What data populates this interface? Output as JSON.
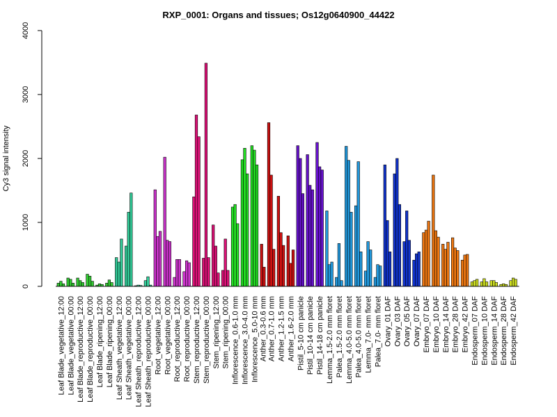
{
  "chart_data": {
    "type": "bar",
    "title": "RXP_0001: Organs and tissues; Os12g0640900_44422",
    "ylabel": "Cy3 signal intensity",
    "xlabel": "",
    "ylim": [
      0,
      4000
    ],
    "yticks": [
      0,
      1000,
      2000,
      3000,
      4000
    ],
    "grid": false,
    "legend": "none",
    "groups": [
      {
        "name": "Leaf Blade_vegetative_12:00",
        "color": "#33cc33",
        "values": [
          50,
          80,
          40
        ]
      },
      {
        "name": "Leaf Blade_vegetative_00:00",
        "color": "#33cc33",
        "values": [
          130,
          110,
          50
        ]
      },
      {
        "name": "Leaf Blade_reproductive_12:00",
        "color": "#33cc33",
        "values": [
          130,
          90,
          60
        ]
      },
      {
        "name": "Leaf Blade_reproductive_00:00",
        "color": "#33cc33",
        "values": [
          190,
          160,
          80
        ]
      },
      {
        "name": "Leaf Blade_ripening_12:00",
        "color": "#33cc33",
        "values": [
          20,
          40,
          30
        ]
      },
      {
        "name": "Leaf Blade_ripening_00:00",
        "color": "#33cc33",
        "values": [
          50,
          100,
          60
        ]
      },
      {
        "name": "Leaf Sheath_vegetative_12:00",
        "color": "#33cc99",
        "values": [
          450,
          380,
          740
        ]
      },
      {
        "name": "Leaf Sheath_vegetative_00:00",
        "color": "#33cc99",
        "values": [
          630,
          1160,
          1460
        ]
      },
      {
        "name": "Leaf Sheath_reproductive_12:00",
        "color": "#33cc99",
        "values": [
          10,
          20,
          15
        ]
      },
      {
        "name": "Leaf Sheath_reproductive_00:00",
        "color": "#33cc99",
        "values": [
          90,
          150,
          20
        ]
      },
      {
        "name": "Root_vegetative_12:00",
        "color": "#cc33cc",
        "values": [
          1510,
          780,
          860
        ]
      },
      {
        "name": "Root_vegetative_00:00",
        "color": "#cc33cc",
        "values": [
          2020,
          720,
          700
        ]
      },
      {
        "name": "Root_reproductive_12:00",
        "color": "#cc33cc",
        "values": [
          140,
          420,
          420
        ]
      },
      {
        "name": "Root_reproductive_00:00",
        "color": "#cc33cc",
        "values": [
          230,
          400,
          370
        ]
      },
      {
        "name": "Stem_reproductive_12:00",
        "color": "#dd1177",
        "values": [
          1400,
          2680,
          2340
        ]
      },
      {
        "name": "Stem_reproductive_00:00",
        "color": "#dd1177",
        "values": [
          440,
          3490,
          450
        ]
      },
      {
        "name": "Stem_ripening_12:00",
        "color": "#dd1177",
        "values": [
          960,
          630,
          210
        ]
      },
      {
        "name": "Stem_ripening_00:00",
        "color": "#dd1177",
        "values": [
          250,
          740,
          250
        ]
      },
      {
        "name": "Inflorescence_0.6-1.0 mm",
        "color": "#22dd22",
        "values": [
          1240,
          1280,
          980
        ]
      },
      {
        "name": "Inflorescence_3.0-4.0 mm",
        "color": "#22dd22",
        "values": [
          1980,
          2160,
          1760
        ]
      },
      {
        "name": "Inflorescence_5.0-10 mm",
        "color": "#22dd22",
        "values": [
          2200,
          2130,
          1900
        ]
      },
      {
        "name": "Anther_0.3-0.6 mm",
        "color": "#cc1111",
        "values": [
          660,
          300
        ]
      },
      {
        "name": "Anther_0.7-1.0 mm",
        "color": "#cc1111",
        "values": [
          2560,
          1740,
          580
        ]
      },
      {
        "name": "Anther_1.2-1.5 mm",
        "color": "#cc1111",
        "values": [
          1410,
          840,
          640
        ]
      },
      {
        "name": "Anther_1.6-2.0 mm",
        "color": "#cc1111",
        "values": [
          790,
          360,
          570
        ]
      },
      {
        "name": "Pistil_5-10 cm panicle",
        "color": "#6611cc",
        "values": [
          2200,
          2000,
          1450
        ]
      },
      {
        "name": "Pistil_10-14 cm panicle",
        "color": "#6611cc",
        "values": [
          2060,
          1580,
          1510
        ]
      },
      {
        "name": "Pistil_14-18 cm panicle",
        "color": "#6611cc",
        "values": [
          2250,
          1870,
          1820
        ]
      },
      {
        "name": "Lemma_1.5-2.0 mm floret",
        "color": "#2299dd",
        "values": [
          1180,
          340,
          380
        ]
      },
      {
        "name": "Palea_1.5-2.0 mm floret",
        "color": "#2299dd",
        "values": [
          140,
          670,
          90
        ]
      },
      {
        "name": "Lemma_4.0-5.0 mm floret",
        "color": "#2299dd",
        "values": [
          2190,
          1970,
          1160
        ]
      },
      {
        "name": "Palea_4.0-5.0 mm floret",
        "color": "#2299dd",
        "values": [
          1260,
          1950,
          540
        ]
      },
      {
        "name": "Lemma_7.0- mm floret",
        "color": "#2299dd",
        "values": [
          240,
          700,
          570
        ]
      },
      {
        "name": "Palea_7.0- mm floret",
        "color": "#2299dd",
        "values": [
          140,
          340,
          320
        ]
      },
      {
        "name": "Ovary_01 DAF",
        "color": "#1133cc",
        "values": [
          1900,
          1030,
          540
        ]
      },
      {
        "name": "Ovary_03 DAF",
        "color": "#1133cc",
        "values": [
          1760,
          2000,
          1280
        ]
      },
      {
        "name": "Ovary_05 DAF",
        "color": "#1133cc",
        "values": [
          700,
          1180,
          720
        ]
      },
      {
        "name": "Ovary_07 DAF",
        "color": "#1133cc",
        "values": [
          410,
          510,
          540
        ]
      },
      {
        "name": "Embryo_07 DAF",
        "color": "#ee7711",
        "values": [
          840,
          880,
          1020
        ]
      },
      {
        "name": "Embryo_10 DAF",
        "color": "#ee7711",
        "values": [
          1740,
          870,
          770
        ]
      },
      {
        "name": "Embryo_14 DAF",
        "color": "#ee7711",
        "values": [
          660,
          580,
          690
        ]
      },
      {
        "name": "Embryo_28 DAF",
        "color": "#ee7711",
        "values": [
          760,
          600,
          560
        ]
      },
      {
        "name": "Embryo_42 DAF",
        "color": "#ee7711",
        "values": [
          410,
          490,
          500
        ]
      },
      {
        "name": "Endosperm_07 DAF",
        "color": "#ccdd22",
        "values": [
          70,
          90,
          110
        ]
      },
      {
        "name": "Endosperm_10 DAF",
        "color": "#ccdd22",
        "values": [
          70,
          120,
          70
        ]
      },
      {
        "name": "Endosperm_14 DAF",
        "color": "#ccdd22",
        "values": [
          90,
          90,
          60
        ]
      },
      {
        "name": "Endosperm_28 DAF",
        "color": "#ccdd22",
        "values": [
          30,
          40,
          30
        ]
      },
      {
        "name": "Endosperm_42 DAF",
        "color": "#ccdd22",
        "values": [
          90,
          130,
          110
        ]
      }
    ]
  }
}
